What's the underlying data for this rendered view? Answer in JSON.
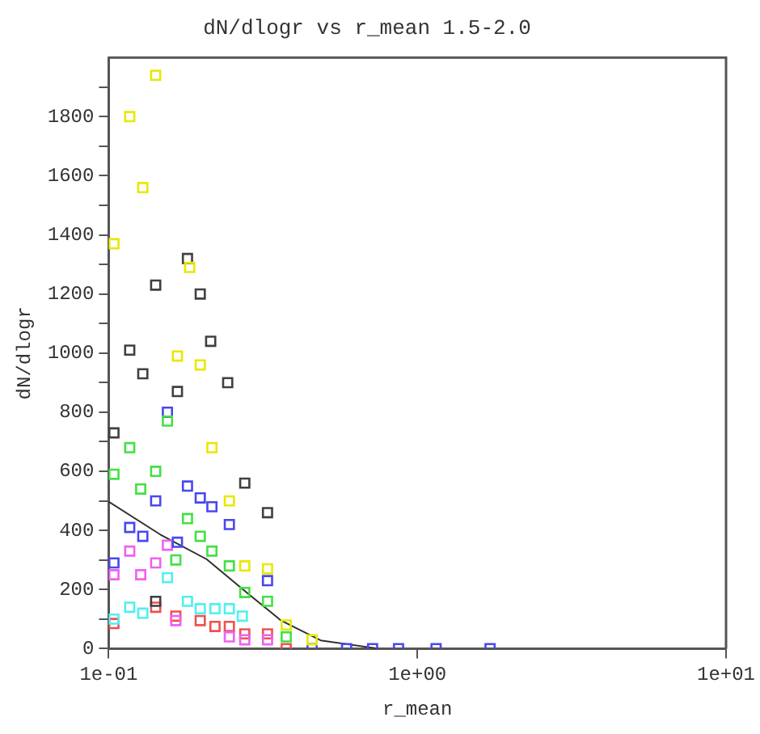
{
  "chart_data": {
    "type": "scatter",
    "title": "dN/dlogr vs r_mean 1.5-2.0",
    "xlabel": "r_mean",
    "ylabel": "dN/dlogr",
    "log": "x",
    "marker": "square",
    "grid": false,
    "legend": false,
    "xlim": [
      0.1,
      10
    ],
    "xticks": [
      {
        "value": 0.1,
        "label": "1e-01"
      },
      {
        "value": 1,
        "label": "1e+00"
      },
      {
        "value": 10,
        "label": "1e+01"
      }
    ],
    "ylim": [
      0,
      2000
    ],
    "yticks": [
      0,
      {
        "value": 100,
        "label": null
      },
      200,
      {
        "value": 300,
        "label": null
      },
      400,
      {
        "value": 500,
        "label": null
      },
      600,
      {
        "value": 700,
        "label": null
      },
      800,
      {
        "value": 900,
        "label": null
      },
      1000,
      {
        "value": 1100,
        "label": null
      },
      1200,
      {
        "value": 1300,
        "label": null
      },
      1400,
      {
        "value": 1500,
        "label": null
      },
      1600,
      {
        "value": 1700,
        "label": null
      },
      1800,
      {
        "value": 1900,
        "label": null
      }
    ],
    "series": [
      {
        "color": "#e8e800",
        "x": [
          0.104,
          0.117,
          0.129,
          0.142,
          0.183,
          0.167,
          0.198,
          0.216,
          0.246,
          0.276,
          0.327,
          0.376,
          0.456
        ],
        "values": [
          1370,
          1800,
          1560,
          1940,
          1290,
          990,
          960,
          680,
          500,
          280,
          270,
          80,
          30
        ]
      },
      {
        "color": "#404040",
        "x": [
          0.104,
          0.117,
          0.129,
          0.142,
          0.167,
          0.18,
          0.198,
          0.214,
          0.243,
          0.276,
          0.327,
          0.142
        ],
        "values": [
          730,
          1010,
          930,
          1230,
          870,
          1320,
          1200,
          1040,
          900,
          560,
          460,
          160
        ]
      },
      {
        "color": "#44e044",
        "x": [
          0.104,
          0.117,
          0.127,
          0.142,
          0.155,
          0.18,
          0.198,
          0.165,
          0.216,
          0.246,
          0.276,
          0.327,
          0.376
        ],
        "values": [
          590,
          680,
          540,
          600,
          770,
          440,
          380,
          300,
          330,
          280,
          190,
          160,
          40
        ]
      },
      {
        "color": "#4848f0",
        "x": [
          0.104,
          0.117,
          0.129,
          0.142,
          0.155,
          0.18,
          0.198,
          0.216,
          0.246,
          0.167,
          0.327,
          0.456,
          0.59,
          0.716,
          0.869,
          1.15,
          1.72
        ],
        "values": [
          290,
          410,
          380,
          500,
          800,
          550,
          510,
          480,
          420,
          360,
          230,
          0,
          0,
          0,
          0,
          0,
          0
        ]
      },
      {
        "color": "#f060f0",
        "x": [
          0.104,
          0.117,
          0.127,
          0.142,
          0.155,
          0.165,
          0.246,
          0.276,
          0.327
        ],
        "values": [
          250,
          330,
          250,
          290,
          350,
          95,
          40,
          30,
          30
        ]
      },
      {
        "color": "#50f0f0",
        "x": [
          0.104,
          0.117,
          0.129,
          0.155,
          0.18,
          0.198,
          0.221,
          0.246,
          0.271
        ],
        "values": [
          100,
          140,
          120,
          240,
          160,
          135,
          135,
          135,
          110
        ]
      },
      {
        "color": "#f05050",
        "x": [
          0.104,
          0.142,
          0.165,
          0.198,
          0.221,
          0.246,
          0.276,
          0.327,
          0.376
        ],
        "values": [
          85,
          140,
          110,
          95,
          75,
          75,
          50,
          50,
          0
        ]
      },
      {
        "type": "line",
        "marker": "none",
        "color": "#303030",
        "x": [
          0.1,
          0.147,
          0.208,
          0.28,
          0.362,
          0.486,
          0.75
        ],
        "values": [
          497,
          386,
          302,
          190,
          95,
          28,
          0
        ]
      }
    ]
  }
}
